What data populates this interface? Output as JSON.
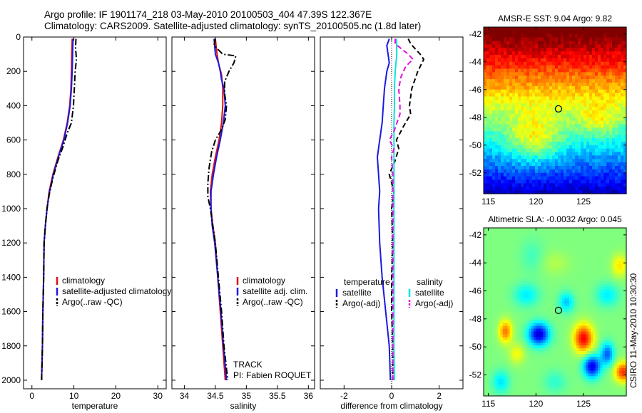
{
  "header": {
    "line1": "Argo profile: IF 1901174_218 03-May-2010 20100503_404 47.39S 122.367E",
    "line2": "Climatology: CARS2009. Satellite-adjusted climatology: synTS_20100505.nc (1.8d later)"
  },
  "side_caption": "CSIRO 11-May-2010 10:30:30",
  "colors": {
    "red": "#e01010",
    "blue": "#1a1ae0",
    "black": "#000000",
    "cyan": "#10e0e0",
    "magenta": "#e010e0"
  },
  "chart_data": [
    {
      "type": "line",
      "xlabel": "temperature",
      "xlim": [
        -2,
        32
      ],
      "ylim": [
        2050,
        0
      ],
      "x_ticks": [
        0,
        10,
        20,
        30
      ],
      "y_ticks": [
        0,
        200,
        400,
        600,
        800,
        1000,
        1200,
        1400,
        1600,
        1800,
        2000
      ],
      "legend": [
        "climatology",
        "satellite-adjusted climatology",
        "Argo(..raw -QC)"
      ],
      "series": [
        {
          "name": "climatology",
          "color": "red",
          "style": "solid",
          "points": [
            [
              9.6,
              10
            ],
            [
              9.5,
              100
            ],
            [
              9.4,
              200
            ],
            [
              9.3,
              300
            ],
            [
              9.0,
              400
            ],
            [
              8.4,
              500
            ],
            [
              7.5,
              600
            ],
            [
              6.2,
              700
            ],
            [
              5.0,
              800
            ],
            [
              4.1,
              900
            ],
            [
              3.6,
              1000
            ],
            [
              3.2,
              1100
            ],
            [
              2.9,
              1200
            ],
            [
              2.8,
              1400
            ],
            [
              2.6,
              1600
            ],
            [
              2.5,
              1800
            ],
            [
              2.3,
              2000
            ]
          ]
        },
        {
          "name": "satellite-adjusted climatology",
          "color": "blue",
          "style": "solid",
          "points": [
            [
              9.8,
              10
            ],
            [
              9.7,
              100
            ],
            [
              9.6,
              200
            ],
            [
              9.4,
              300
            ],
            [
              9.1,
              400
            ],
            [
              8.5,
              500
            ],
            [
              7.6,
              600
            ],
            [
              6.3,
              700
            ],
            [
              5.1,
              800
            ],
            [
              4.2,
              900
            ],
            [
              3.6,
              1000
            ],
            [
              3.2,
              1100
            ],
            [
              2.9,
              1200
            ],
            [
              2.8,
              1400
            ],
            [
              2.6,
              1600
            ],
            [
              2.5,
              1800
            ],
            [
              2.3,
              2000
            ]
          ]
        },
        {
          "name": "Argo(..raw -QC)",
          "color": "black",
          "style": "dashdot",
          "points": [
            [
              10.5,
              10
            ],
            [
              10.4,
              60
            ],
            [
              10.6,
              130
            ],
            [
              10.3,
              200
            ],
            [
              10.1,
              300
            ],
            [
              9.9,
              400
            ],
            [
              9.4,
              500
            ],
            [
              8.4,
              560
            ],
            [
              7.4,
              640
            ],
            [
              6.2,
              720
            ],
            [
              5.0,
              820
            ],
            [
              4.1,
              920
            ],
            [
              3.6,
              1000
            ],
            [
              3.2,
              1100
            ],
            [
              2.9,
              1200
            ],
            [
              2.8,
              1400
            ],
            [
              2.6,
              1600
            ],
            [
              2.5,
              1800
            ],
            [
              2.3,
              2000
            ]
          ]
        }
      ]
    },
    {
      "type": "line",
      "xlabel": "salinity",
      "xlim": [
        33.8,
        36.1
      ],
      "ylim": [
        2050,
        0
      ],
      "x_ticks": [
        34,
        34.5,
        35,
        35.5,
        36
      ],
      "annotations": [
        "TRACK",
        "PI: Fabien ROQUET"
      ],
      "legend": [
        "climatology",
        "satellite adj. clim.",
        "Argo(..raw -QC)"
      ],
      "series": [
        {
          "name": "climatology",
          "color": "red",
          "style": "solid",
          "points": [
            [
              34.5,
              10
            ],
            [
              34.52,
              80
            ],
            [
              34.55,
              150
            ],
            [
              34.6,
              220
            ],
            [
              34.62,
              300
            ],
            [
              34.62,
              400
            ],
            [
              34.6,
              500
            ],
            [
              34.56,
              600
            ],
            [
              34.5,
              700
            ],
            [
              34.45,
              800
            ],
            [
              34.42,
              900
            ],
            [
              34.43,
              1000
            ],
            [
              34.46,
              1100
            ],
            [
              34.5,
              1200
            ],
            [
              34.54,
              1400
            ],
            [
              34.58,
              1600
            ],
            [
              34.62,
              1800
            ],
            [
              34.66,
              2000
            ]
          ]
        },
        {
          "name": "satellite adj. clim.",
          "color": "blue",
          "style": "solid",
          "points": [
            [
              34.48,
              10
            ],
            [
              34.5,
              100
            ],
            [
              34.55,
              150
            ],
            [
              34.58,
              200
            ],
            [
              34.6,
              250
            ],
            [
              34.64,
              300
            ],
            [
              34.66,
              400
            ],
            [
              34.63,
              500
            ],
            [
              34.58,
              600
            ],
            [
              34.52,
              700
            ],
            [
              34.47,
              800
            ],
            [
              34.43,
              900
            ],
            [
              34.43,
              1000
            ],
            [
              34.45,
              1100
            ],
            [
              34.49,
              1200
            ],
            [
              34.54,
              1400
            ],
            [
              34.59,
              1600
            ],
            [
              34.63,
              1800
            ],
            [
              34.68,
              2000
            ]
          ]
        },
        {
          "name": "Argo(..raw -QC)",
          "color": "black",
          "style": "dashdot",
          "points": [
            [
              34.5,
              10
            ],
            [
              34.48,
              50
            ],
            [
              34.62,
              100
            ],
            [
              34.83,
              110
            ],
            [
              34.8,
              150
            ],
            [
              34.72,
              200
            ],
            [
              34.65,
              260
            ],
            [
              34.65,
              330
            ],
            [
              34.68,
              400
            ],
            [
              34.66,
              480
            ],
            [
              34.6,
              540
            ],
            [
              34.5,
              600
            ],
            [
              34.44,
              670
            ],
            [
              34.4,
              760
            ],
            [
              34.38,
              850
            ],
            [
              34.38,
              930
            ],
            [
              34.42,
              1000
            ],
            [
              34.46,
              1100
            ],
            [
              34.5,
              1200
            ],
            [
              34.55,
              1400
            ],
            [
              34.6,
              1600
            ],
            [
              34.64,
              1800
            ],
            [
              34.7,
              2000
            ]
          ]
        }
      ]
    },
    {
      "type": "line",
      "xlabel": "difference from climatology",
      "xlim": [
        -3.0,
        3.0
      ],
      "ylim": [
        2050,
        0
      ],
      "x_ticks": [
        -2,
        0,
        2
      ],
      "legend_left_title": "temperature",
      "legend_right_title": "salinity",
      "legend": [
        "satellite",
        "Argo(-adj)",
        "satellite",
        "Argo(-adj)"
      ],
      "series": [
        {
          "name": "temperature satellite",
          "color": "blue",
          "style": "solid",
          "points": [
            [
              -0.1,
              10
            ],
            [
              -0.2,
              50
            ],
            [
              -0.15,
              100
            ],
            [
              -0.1,
              150
            ],
            [
              -0.2,
              200
            ],
            [
              -0.3,
              300
            ],
            [
              -0.35,
              400
            ],
            [
              -0.4,
              500
            ],
            [
              -0.5,
              600
            ],
            [
              -0.6,
              700
            ],
            [
              -0.55,
              800
            ],
            [
              -0.5,
              900
            ],
            [
              -0.55,
              1000
            ],
            [
              -0.5,
              1200
            ],
            [
              -0.4,
              1400
            ],
            [
              -0.25,
              1600
            ],
            [
              -0.1,
              1800
            ],
            [
              -0.05,
              2000
            ]
          ]
        },
        {
          "name": "temperature Argo(-adj)",
          "color": "black",
          "style": "dashed",
          "points": [
            [
              0.7,
              10
            ],
            [
              0.8,
              40
            ],
            [
              1.2,
              100
            ],
            [
              1.35,
              130
            ],
            [
              1.1,
              200
            ],
            [
              0.85,
              300
            ],
            [
              0.75,
              400
            ],
            [
              0.8,
              450
            ],
            [
              0.5,
              520
            ],
            [
              0.2,
              600
            ],
            [
              0.3,
              650
            ],
            [
              0.15,
              720
            ],
            [
              -0.1,
              800
            ],
            [
              0.1,
              900
            ],
            [
              0.0,
              1000
            ],
            [
              0.05,
              1200
            ],
            [
              0.0,
              1400
            ],
            [
              0.0,
              1600
            ],
            [
              0.05,
              1800
            ],
            [
              0.05,
              2000
            ]
          ]
        },
        {
          "name": "salinity satellite",
          "color": "cyan",
          "style": "solid",
          "points": [
            [
              0.2,
              10
            ],
            [
              0.22,
              100
            ],
            [
              0.15,
              200
            ],
            [
              0.12,
              300
            ],
            [
              0.12,
              400
            ],
            [
              0.1,
              500
            ],
            [
              0.1,
              600
            ],
            [
              0.1,
              800
            ],
            [
              0.1,
              1000
            ],
            [
              0.1,
              1400
            ],
            [
              0.1,
              1800
            ],
            [
              0.12,
              2000
            ]
          ]
        },
        {
          "name": "salinity Argo(-adj)",
          "color": "magenta",
          "style": "dashed",
          "points": [
            [
              0.15,
              10
            ],
            [
              0.15,
              40
            ],
            [
              0.7,
              100
            ],
            [
              0.9,
              130
            ],
            [
              0.6,
              170
            ],
            [
              0.4,
              230
            ],
            [
              0.3,
              300
            ],
            [
              0.35,
              400
            ],
            [
              0.35,
              450
            ],
            [
              0.1,
              550
            ],
            [
              -0.1,
              600
            ],
            [
              0.1,
              650
            ],
            [
              0.0,
              700
            ],
            [
              0.05,
              800
            ],
            [
              0.05,
              900
            ],
            [
              0.05,
              1000
            ],
            [
              0.05,
              1200
            ],
            [
              0.05,
              1400
            ],
            [
              0.05,
              1600
            ],
            [
              0.05,
              1800
            ],
            [
              0.05,
              2000
            ]
          ]
        }
      ]
    },
    {
      "type": "heatmap",
      "title": "AMSR-E SST: 9.04 Argo: 9.82",
      "xlim": [
        114.5,
        129.5
      ],
      "ylim": [
        -53.5,
        -41.5
      ],
      "x_ticks": [
        115,
        120,
        125
      ],
      "y_ticks": [
        -42,
        -44,
        -46,
        -48,
        -50,
        -52
      ],
      "marker": {
        "lon": 122.367,
        "lat": -47.39
      }
    },
    {
      "type": "heatmap",
      "title": "Altimetric SLA: -0.0032 Argo: 0.045",
      "xlim": [
        114.5,
        129.5
      ],
      "ylim": [
        -53.5,
        -41.5
      ],
      "x_ticks": [
        115,
        120,
        125
      ],
      "y_ticks": [
        -42,
        -44,
        -46,
        -48,
        -50,
        -52
      ],
      "marker": {
        "lon": 122.367,
        "lat": -47.39
      }
    }
  ]
}
